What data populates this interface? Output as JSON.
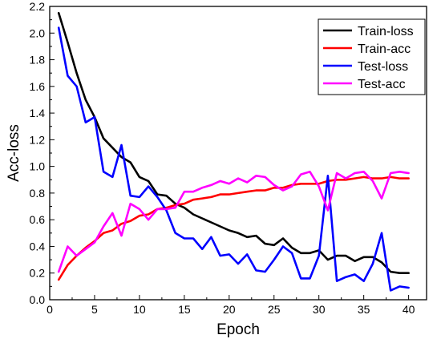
{
  "chart_data": {
    "type": "line",
    "xlabel": "Epoch",
    "ylabel": "Acc-loss",
    "xlim": [
      0,
      42
    ],
    "ylim": [
      0,
      2.2
    ],
    "xticks": [
      0,
      5,
      10,
      15,
      20,
      25,
      30,
      35,
      40
    ],
    "xtick_labels": [
      "0",
      "5",
      "10",
      "15",
      "20",
      "25",
      "30",
      "35",
      "40"
    ],
    "yticks": [
      0,
      0.2,
      0.4,
      0.6,
      0.8,
      1.0,
      1.2,
      1.4,
      1.6,
      1.8,
      2.0,
      2.2
    ],
    "ytick_labels": [
      "0.0",
      "0.2",
      "0.4",
      "0.6",
      "0.8",
      "1.0",
      "1.2",
      "1.4",
      "1.6",
      "1.8",
      "2.0",
      "2.2"
    ],
    "grid": false,
    "legend_position": "top-right",
    "x": [
      1,
      2,
      3,
      4,
      5,
      6,
      7,
      8,
      9,
      10,
      11,
      12,
      13,
      14,
      15,
      16,
      17,
      18,
      19,
      20,
      21,
      22,
      23,
      24,
      25,
      26,
      27,
      28,
      29,
      30,
      31,
      32,
      33,
      34,
      35,
      36,
      37,
      38,
      39,
      40
    ],
    "series": [
      {
        "name": "Train-loss",
        "color": "#000000",
        "values": [
          2.15,
          1.93,
          1.7,
          1.5,
          1.37,
          1.21,
          1.14,
          1.07,
          1.03,
          0.92,
          0.89,
          0.79,
          0.78,
          0.72,
          0.69,
          0.64,
          0.61,
          0.58,
          0.55,
          0.52,
          0.5,
          0.47,
          0.48,
          0.42,
          0.41,
          0.46,
          0.39,
          0.35,
          0.35,
          0.37,
          0.3,
          0.33,
          0.33,
          0.29,
          0.32,
          0.32,
          0.28,
          0.21,
          0.2,
          0.2
        ]
      },
      {
        "name": "Train-acc",
        "color": "#ff0000",
        "values": [
          0.15,
          0.26,
          0.33,
          0.39,
          0.44,
          0.5,
          0.52,
          0.57,
          0.59,
          0.63,
          0.64,
          0.68,
          0.69,
          0.71,
          0.72,
          0.75,
          0.76,
          0.77,
          0.79,
          0.79,
          0.8,
          0.81,
          0.82,
          0.82,
          0.84,
          0.84,
          0.86,
          0.87,
          0.87,
          0.87,
          0.89,
          0.9,
          0.9,
          0.91,
          0.92,
          0.91,
          0.91,
          0.92,
          0.91,
          0.91
        ]
      },
      {
        "name": "Test-loss",
        "color": "#0000ff",
        "values": [
          2.04,
          1.68,
          1.6,
          1.33,
          1.37,
          0.96,
          0.92,
          1.16,
          0.78,
          0.77,
          0.85,
          0.77,
          0.67,
          0.5,
          0.46,
          0.46,
          0.38,
          0.47,
          0.33,
          0.34,
          0.27,
          0.34,
          0.22,
          0.21,
          0.3,
          0.4,
          0.35,
          0.16,
          0.16,
          0.33,
          0.93,
          0.14,
          0.17,
          0.19,
          0.14,
          0.27,
          0.5,
          0.07,
          0.1,
          0.09
        ]
      },
      {
        "name": "Test-acc",
        "color": "#ff00ff",
        "values": [
          0.21,
          0.4,
          0.33,
          0.38,
          0.43,
          0.55,
          0.65,
          0.48,
          0.72,
          0.68,
          0.6,
          0.68,
          0.68,
          0.69,
          0.81,
          0.81,
          0.84,
          0.86,
          0.89,
          0.87,
          0.91,
          0.88,
          0.93,
          0.92,
          0.86,
          0.82,
          0.85,
          0.94,
          0.96,
          0.85,
          0.67,
          0.95,
          0.91,
          0.95,
          0.96,
          0.89,
          0.76,
          0.95,
          0.96,
          0.95
        ]
      }
    ]
  }
}
